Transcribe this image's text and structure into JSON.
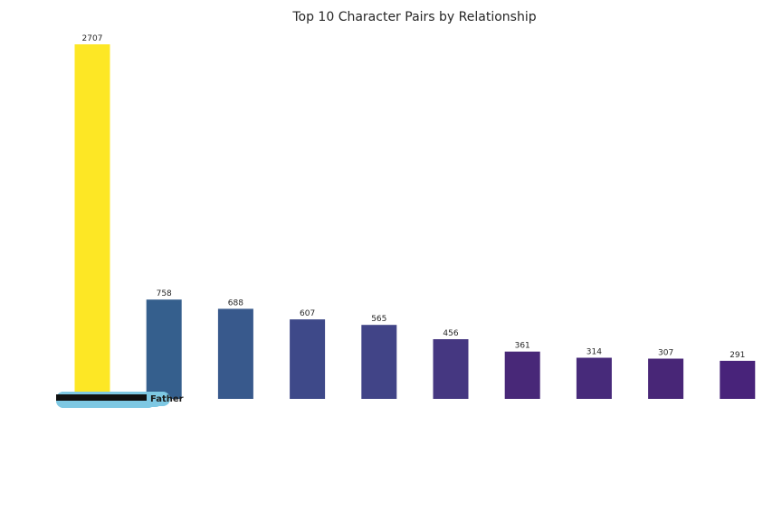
{
  "chart_data": {
    "type": "bar",
    "title": "Top 10 Character Pairs by Relationship",
    "xlabel": "",
    "ylabel": "",
    "values": [
      2707,
      758,
      688,
      607,
      565,
      456,
      361,
      314,
      307,
      291
    ],
    "bar_colors": [
      "#fde725",
      "#355f8d",
      "#38598c",
      "#3e4989",
      "#414487",
      "#453781",
      "#482878",
      "#472a7a",
      "#482677",
      "#48237a"
    ],
    "ylim": [
      0,
      2840
    ],
    "grid": false,
    "legend": "none",
    "overlapping_label_text": "Father"
  },
  "colors": {
    "label_bubble": "#7ec8e3"
  }
}
